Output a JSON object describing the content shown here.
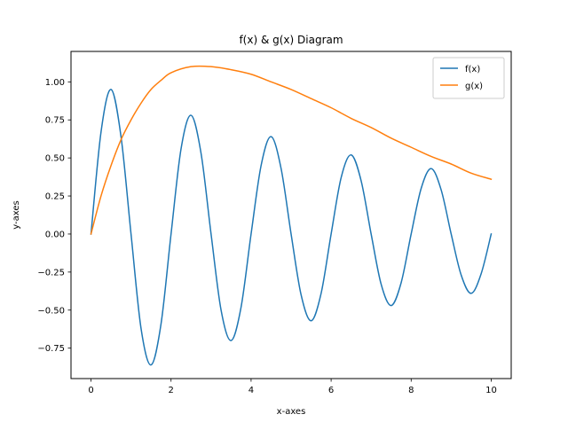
{
  "chart_data": {
    "type": "line",
    "title": "f(x) & g(x) Diagram",
    "xlabel": "x-axes",
    "ylabel": "y-axes",
    "xlim": [
      -0.5,
      10.5
    ],
    "ylim": [
      -0.95,
      1.2
    ],
    "x_ticks": [
      0,
      2,
      4,
      6,
      8,
      10
    ],
    "x_tick_labels": [
      "0",
      "2",
      "4",
      "6",
      "8",
      "10"
    ],
    "y_ticks": [
      -0.75,
      -0.5,
      -0.25,
      0.0,
      0.25,
      0.5,
      0.75,
      1.0
    ],
    "y_tick_labels": [
      "−0.75",
      "−0.50",
      "−0.25",
      "0.00",
      "0.25",
      "0.50",
      "0.75",
      "1.00"
    ],
    "grid": false,
    "legend_position": "top-right",
    "series": [
      {
        "name": "f(x)",
        "color": "#1f77b4",
        "x": [
          0,
          0.25,
          0.5,
          0.75,
          1.0,
          1.25,
          1.5,
          1.75,
          2.0,
          2.25,
          2.5,
          2.75,
          3.0,
          3.25,
          3.5,
          3.75,
          4.0,
          4.25,
          4.5,
          4.75,
          5.0,
          5.25,
          5.5,
          5.75,
          6.0,
          6.25,
          6.5,
          6.75,
          7.0,
          7.25,
          7.5,
          7.75,
          8.0,
          8.25,
          8.5,
          8.75,
          9.0,
          9.25,
          9.5,
          9.75,
          10.0
        ],
        "y": [
          0.0,
          0.67,
          0.95,
          0.64,
          0.0,
          -0.62,
          -0.86,
          -0.59,
          0.0,
          0.56,
          0.78,
          0.53,
          0.0,
          -0.5,
          -0.7,
          -0.48,
          0.0,
          0.45,
          0.64,
          0.43,
          0.0,
          -0.4,
          -0.57,
          -0.39,
          0.0,
          0.37,
          0.52,
          0.35,
          0.0,
          -0.33,
          -0.47,
          -0.32,
          0.0,
          0.3,
          0.43,
          0.29,
          0.0,
          -0.27,
          -0.39,
          -0.26,
          0.0
        ]
      },
      {
        "name": "g(x)",
        "color": "#ff7f0e",
        "x": [
          0,
          0.25,
          0.5,
          0.75,
          1.0,
          1.25,
          1.5,
          1.75,
          2.0,
          2.5,
          3.0,
          3.5,
          4.0,
          4.5,
          5.0,
          5.5,
          6.0,
          6.5,
          7.0,
          7.5,
          8.0,
          8.5,
          9.0,
          9.5,
          10.0
        ],
        "y": [
          0.0,
          0.25,
          0.45,
          0.62,
          0.75,
          0.86,
          0.95,
          1.01,
          1.06,
          1.1,
          1.1,
          1.08,
          1.05,
          1.0,
          0.95,
          0.89,
          0.83,
          0.76,
          0.7,
          0.63,
          0.57,
          0.51,
          0.46,
          0.4,
          0.36
        ]
      }
    ]
  }
}
